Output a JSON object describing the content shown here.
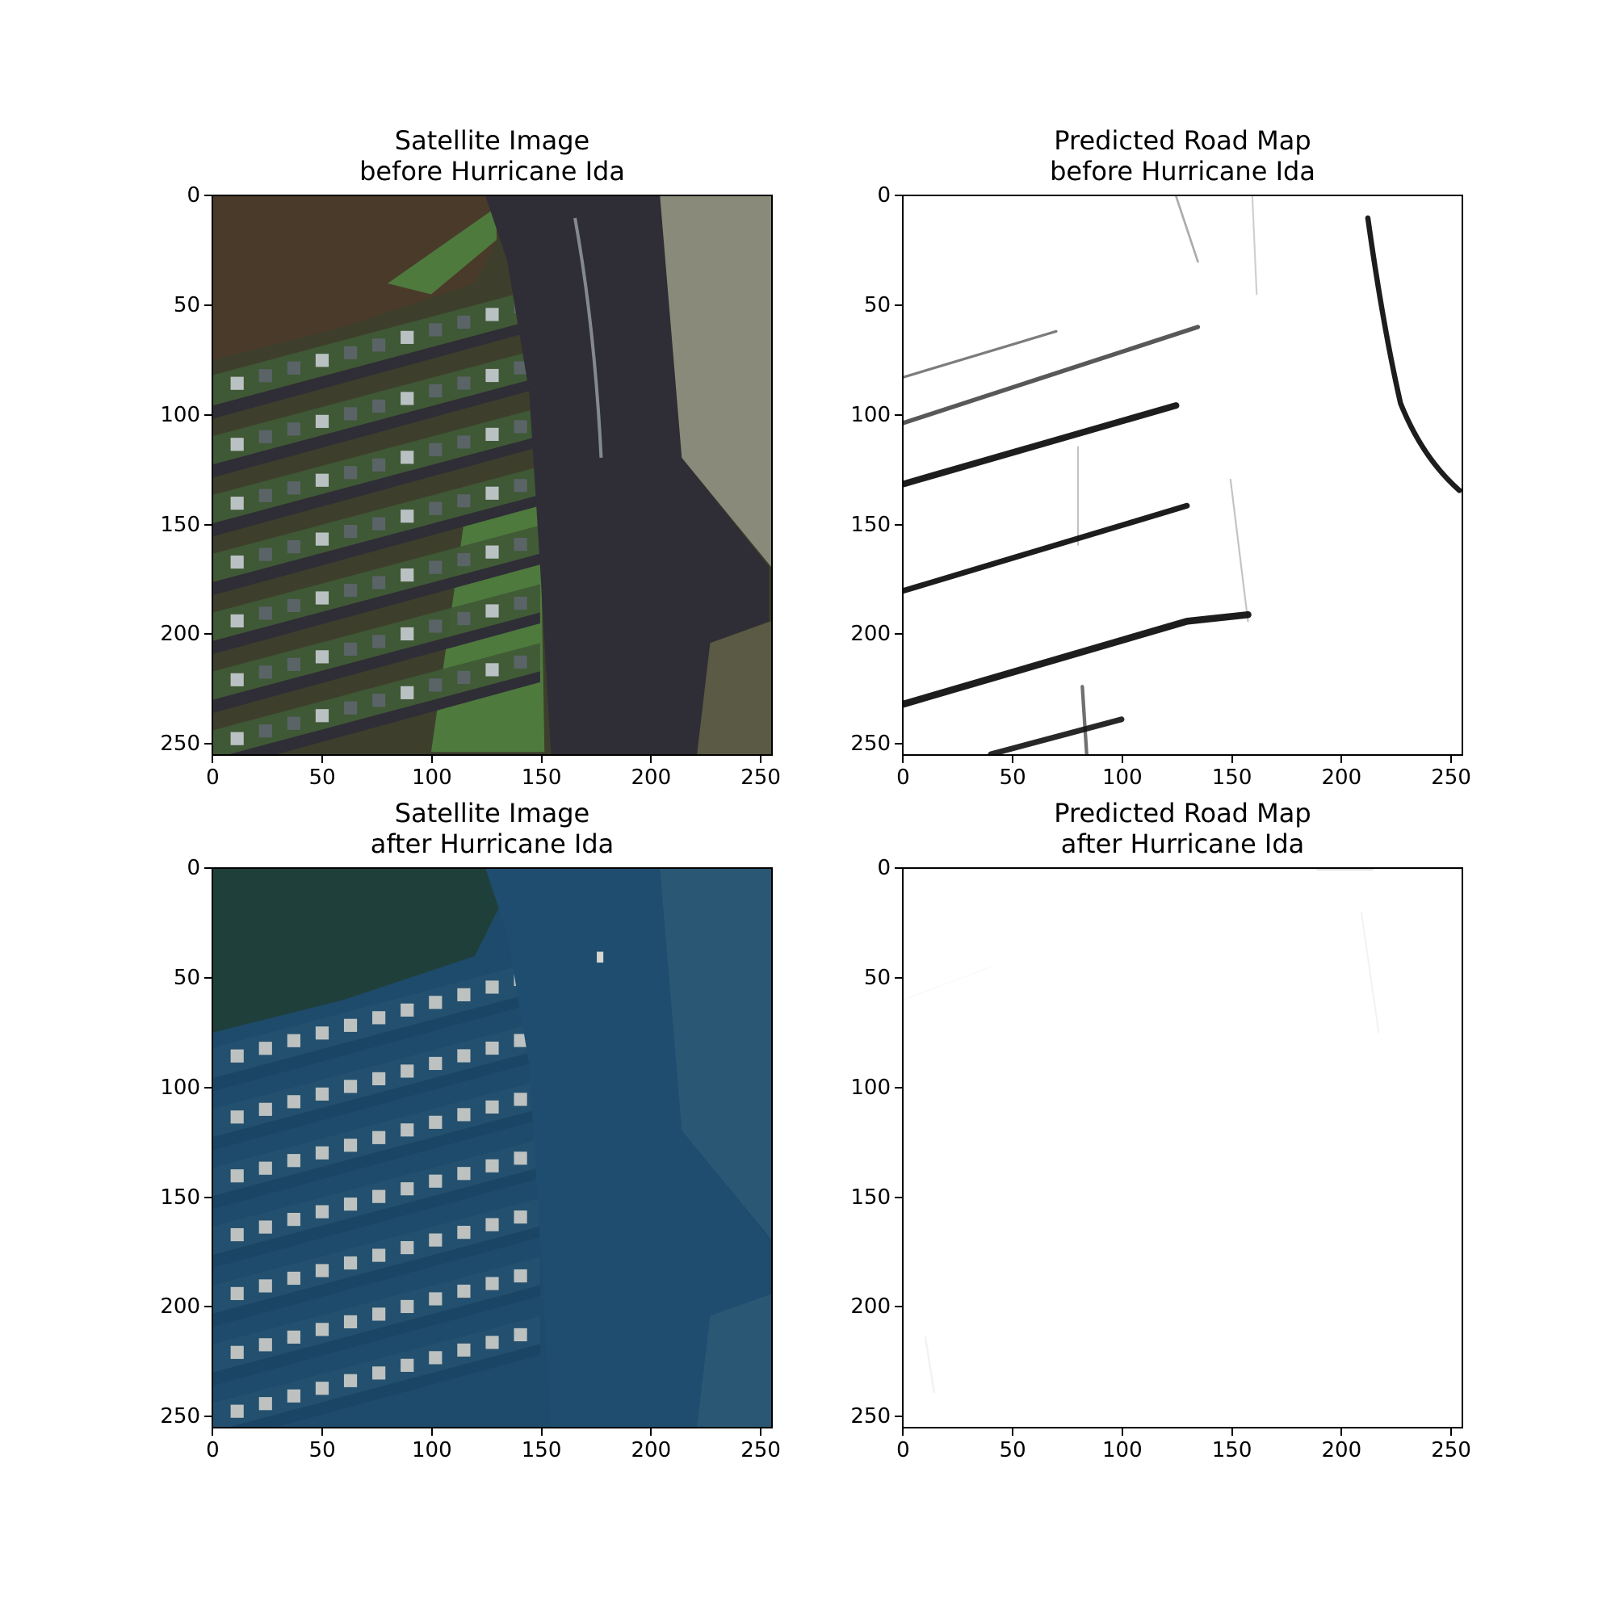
{
  "figure": {
    "panels": [
      {
        "id": "before-satellite",
        "title_line1": "Satellite Image",
        "title_line2": "before Hurricane Ida",
        "kind": "satellite",
        "palette": "before",
        "colors": {
          "land": "#3d3f2c",
          "lawn": "#4e7a3d",
          "water": "#2f2d36",
          "roof": "#c9c9cf",
          "trees": "#4a3a2a"
        }
      },
      {
        "id": "before-roadmap",
        "title_line1": "Predicted Road Map",
        "title_line2": "before Hurricane Ida",
        "kind": "roadmap",
        "palette": "before",
        "colors": {
          "background": "#ffffff",
          "road": "#111111"
        }
      },
      {
        "id": "after-satellite",
        "title_line1": "Satellite Image",
        "title_line2": "after Hurricane Ida",
        "kind": "satellite",
        "palette": "after",
        "colors": {
          "flood": "#1e4a6b",
          "trees": "#1f3f3a",
          "roof": "#d8d6cf"
        }
      },
      {
        "id": "after-roadmap",
        "title_line1": "Predicted Road Map",
        "title_line2": "after Hurricane Ida",
        "kind": "roadmap",
        "palette": "after",
        "colors": {
          "background": "#ffffff",
          "road": "#bbbbbb"
        }
      }
    ],
    "x_ticks": [
      "0",
      "50",
      "100",
      "150",
      "200",
      "250"
    ],
    "y_ticks": [
      "0",
      "50",
      "100",
      "150",
      "200",
      "250"
    ],
    "axis_range": [
      0,
      255
    ]
  }
}
